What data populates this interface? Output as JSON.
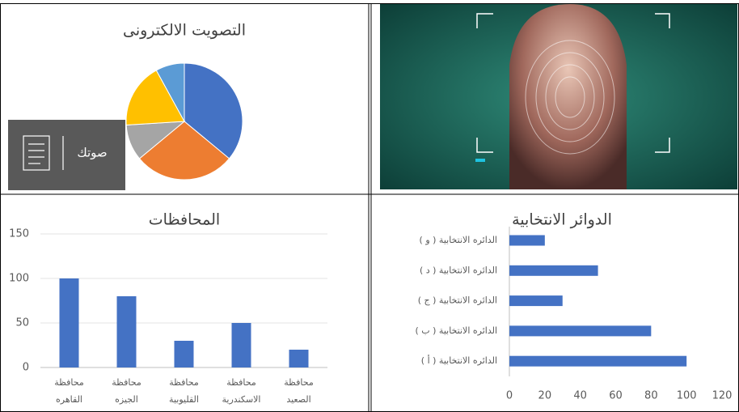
{
  "chart_data": [
    {
      "type": "pie",
      "title": "التصويت الالكترونى",
      "values": [
        36,
        28,
        10,
        18,
        8
      ],
      "colors": [
        "#4472c4",
        "#ed7d31",
        "#a5a5a5",
        "#ffc000",
        "#5b9bd5"
      ]
    },
    {
      "type": "bar",
      "title": "المحافظات",
      "categories": [
        [
          "محافظة",
          "القاهره"
        ],
        [
          "محافظة",
          "الجيزه"
        ],
        [
          "محافظة",
          "القليوبية"
        ],
        [
          "محافظة",
          "الاسكندرية"
        ],
        [
          "محافظة",
          "الصعيد"
        ]
      ],
      "values": [
        100,
        80,
        30,
        50,
        20
      ],
      "color": "#4472c4",
      "ylim": [
        0,
        150
      ],
      "yticks": [
        0,
        50,
        100,
        150
      ],
      "grid": true
    },
    {
      "type": "barh",
      "title": "الدوائر الانتخابية",
      "categories": [
        "الدائره الانتخابية ( أ )",
        "الدائره الانتخابية ( ب )",
        "الدائره الانتخابية ( ج )",
        "الدائره الانتخابية ( د )",
        "الدائره الانتخابية ( و )"
      ],
      "values": [
        100,
        80,
        30,
        50,
        20
      ],
      "color": "#4472c4",
      "xlim": [
        0,
        120
      ],
      "xticks": [
        0,
        20,
        40,
        60,
        80,
        100,
        120
      ],
      "grid": false
    }
  ],
  "widget": {
    "button_label": "صوتك"
  }
}
